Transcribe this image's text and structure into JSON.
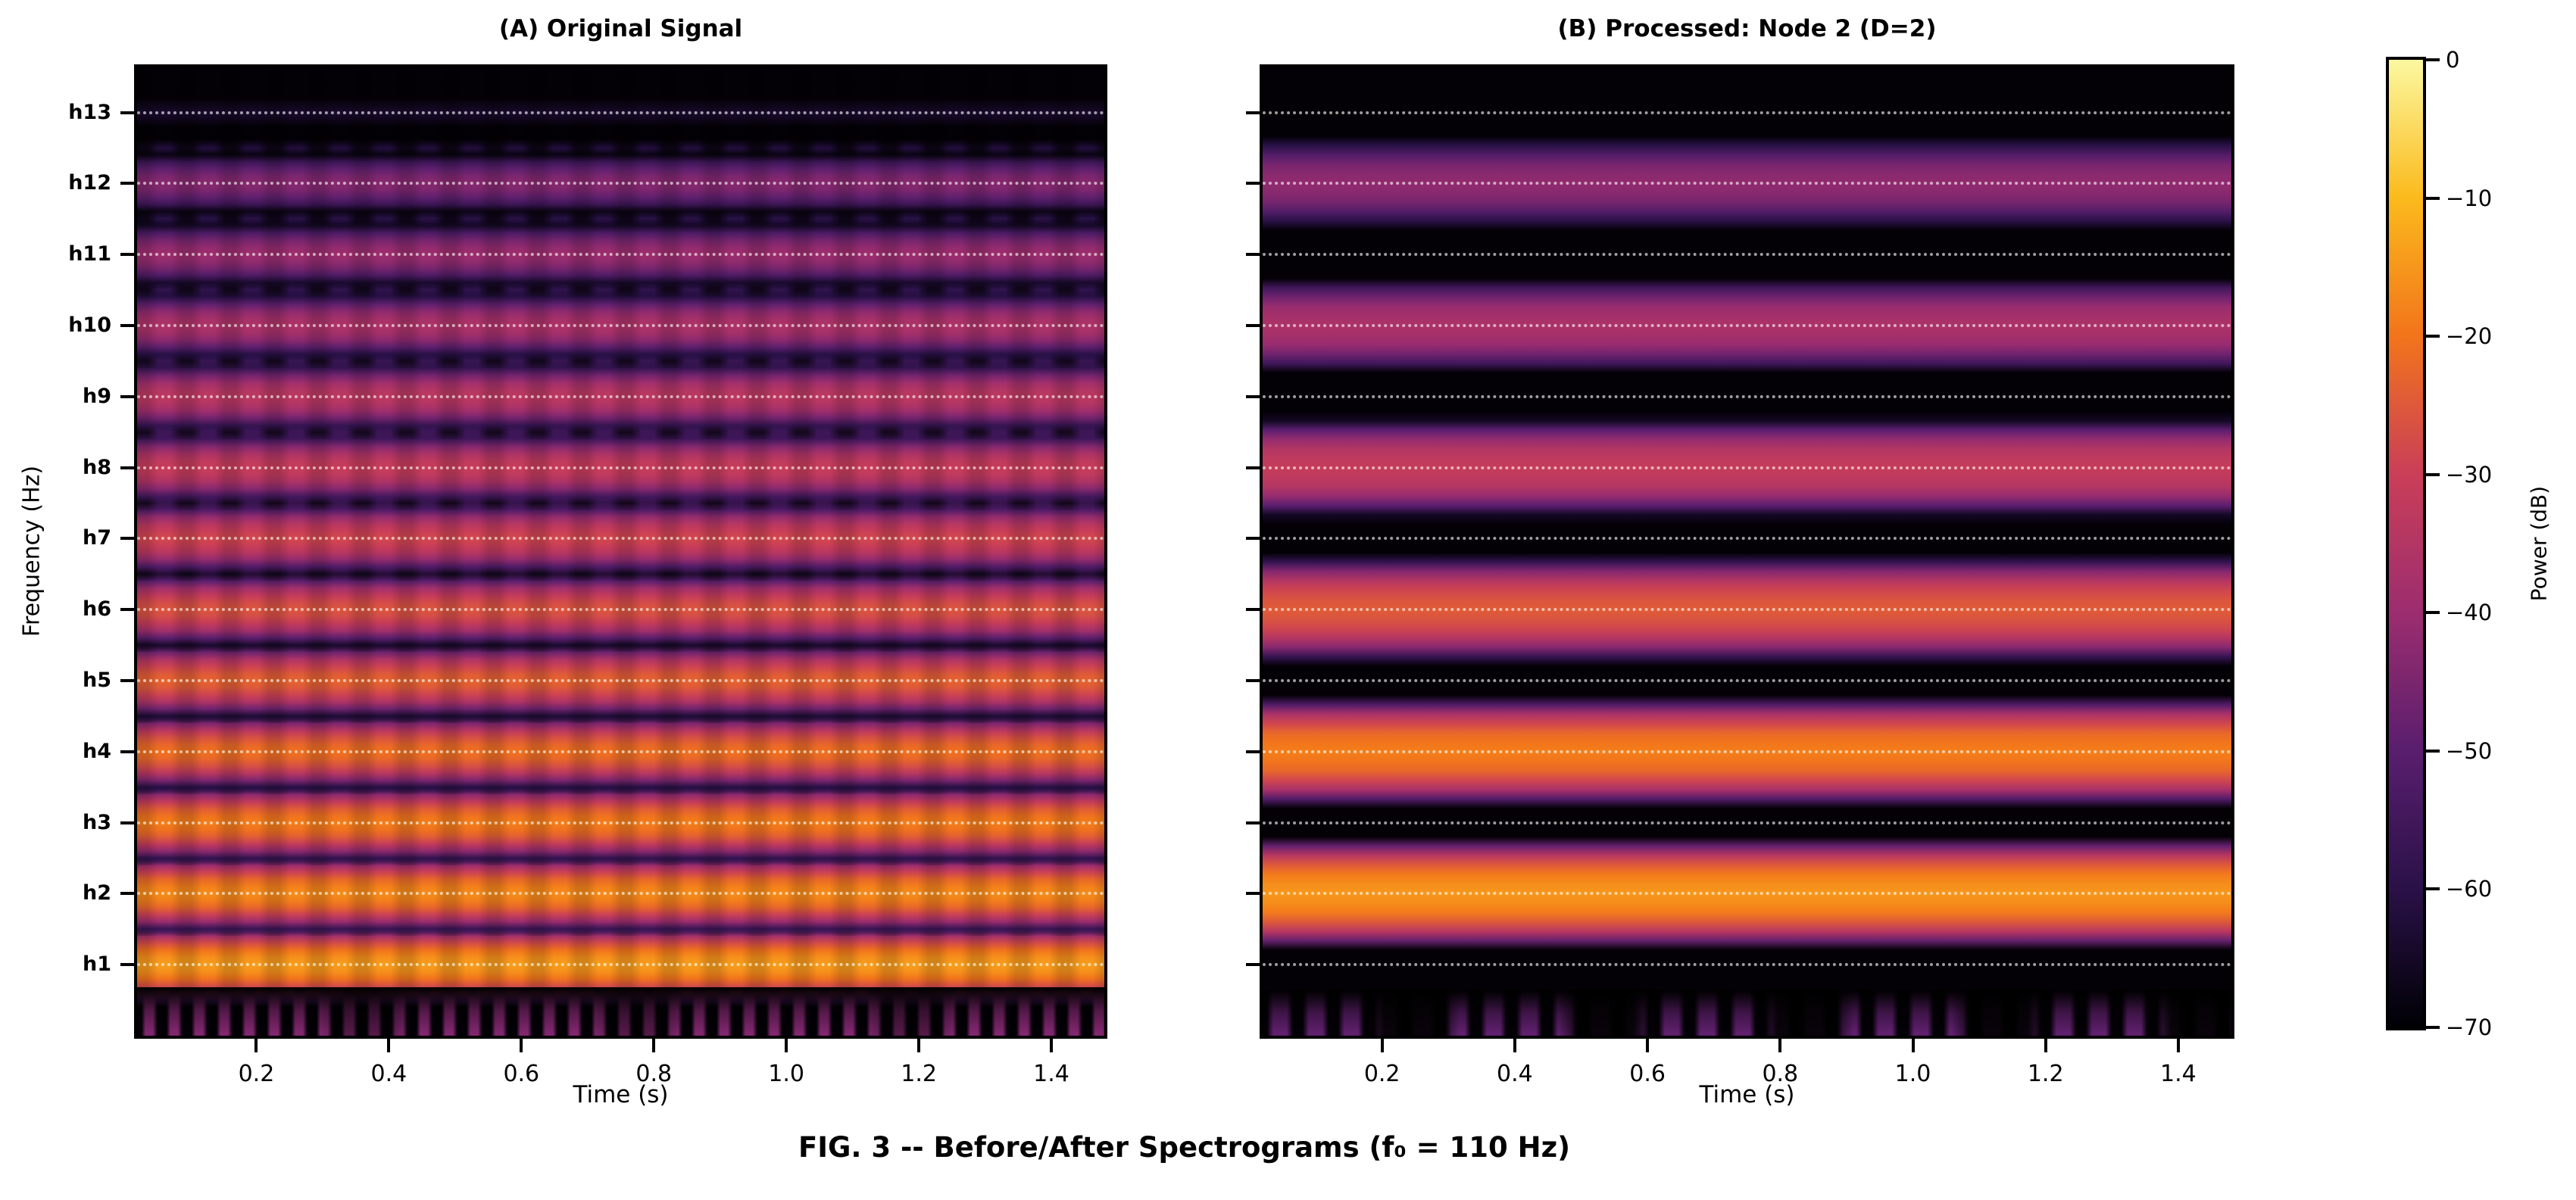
{
  "figure": {
    "caption": "FIG. 3 -- Before/After Spectrograms (f₀ = 110 Hz)",
    "background": "#ffffff"
  },
  "axes": {
    "x_label": "Time (s)",
    "y_label": "Frequency (Hz)",
    "x_range_s": [
      0.02,
      1.48
    ],
    "x_ticks": [
      {
        "value": 0.2,
        "label": "0.2"
      },
      {
        "value": 0.4,
        "label": "0.4"
      },
      {
        "value": 0.6,
        "label": "0.6"
      },
      {
        "value": 0.8,
        "label": "0.8"
      },
      {
        "value": 1.0,
        "label": "1.0"
      },
      {
        "value": 1.2,
        "label": "1.2"
      },
      {
        "value": 1.4,
        "label": "1.4"
      }
    ],
    "y_max_hz": 1500,
    "f0_hz": 110,
    "n_harmonics": 13,
    "y_tick_labels": [
      "h1",
      "h2",
      "h3",
      "h4",
      "h5",
      "h6",
      "h7",
      "h8",
      "h9",
      "h10",
      "h11",
      "h12",
      "h13"
    ]
  },
  "colorbar": {
    "label": "Power (dB)",
    "vmax_db": 0,
    "vmin_db": -70,
    "ticks": [
      {
        "value": 0,
        "label": "0"
      },
      {
        "value": -10,
        "label": "−10"
      },
      {
        "value": -20,
        "label": "−20"
      },
      {
        "value": -30,
        "label": "−30"
      },
      {
        "value": -40,
        "label": "−40"
      },
      {
        "value": -50,
        "label": "−50"
      },
      {
        "value": -60,
        "label": "−60"
      },
      {
        "value": -70,
        "label": "−70"
      }
    ],
    "colormap_stops": [
      {
        "db": -70,
        "color": "#000004"
      },
      {
        "db": -60,
        "color": "#2a1148"
      },
      {
        "db": -50,
        "color": "#591e6e"
      },
      {
        "db": -40,
        "color": "#9c2d6f"
      },
      {
        "db": -30,
        "color": "#ca3e58"
      },
      {
        "db": -20,
        "color": "#f2741b"
      },
      {
        "db": -10,
        "color": "#fbba1c"
      },
      {
        "db": 0,
        "color": "#fbf8a0"
      }
    ]
  },
  "chart_data": [
    {
      "type": "heatmap",
      "panel": "A",
      "title": "(A) Original Signal",
      "xlabel": "Time (s)",
      "ylabel": "Frequency (Hz)",
      "x_range_s": [
        0.02,
        1.48
      ],
      "y_range_hz": [
        0,
        1500
      ],
      "f0_hz": 110,
      "grid": "white dotted line at every harmonic h1–h13",
      "harmonic_bands": [
        {
          "harmonic": 1,
          "freq_hz": 110,
          "peak_db": -14
        },
        {
          "harmonic": 2,
          "freq_hz": 220,
          "peak_db": -16.5
        },
        {
          "harmonic": 3,
          "freq_hz": 330,
          "peak_db": -18.5
        },
        {
          "harmonic": 4,
          "freq_hz": 440,
          "peak_db": -20.5
        },
        {
          "harmonic": 5,
          "freq_hz": 550,
          "peak_db": -23
        },
        {
          "harmonic": 6,
          "freq_hz": 660,
          "peak_db": -25.5
        },
        {
          "harmonic": 7,
          "freq_hz": 770,
          "peak_db": -28
        },
        {
          "harmonic": 8,
          "freq_hz": 880,
          "peak_db": -30.5
        },
        {
          "harmonic": 9,
          "freq_hz": 990,
          "peak_db": -33
        },
        {
          "harmonic": 10,
          "freq_hz": 1100,
          "peak_db": -36
        },
        {
          "harmonic": 11,
          "freq_hz": 1210,
          "peak_db": -39.5
        },
        {
          "harmonic": 12,
          "freq_hz": 1320,
          "peak_db": -43
        },
        {
          "harmonic": 13,
          "freq_hz": 1430,
          "peak_db": -63
        }
      ],
      "interharmonic_bands": [
        {
          "center_harmonic": 1.5,
          "peak_db": -45,
          "modulated": true
        },
        {
          "center_harmonic": 2.5,
          "peak_db": -46.5,
          "modulated": true
        },
        {
          "center_harmonic": 3.5,
          "peak_db": -48,
          "modulated": true
        },
        {
          "center_harmonic": 4.5,
          "peak_db": -49.5,
          "modulated": true
        },
        {
          "center_harmonic": 5.5,
          "peak_db": -51,
          "modulated": true
        },
        {
          "center_harmonic": 6.5,
          "peak_db": -52.5,
          "modulated": true
        },
        {
          "center_harmonic": 7.5,
          "peak_db": -54,
          "modulated": true
        },
        {
          "center_harmonic": 8.5,
          "peak_db": -55.5,
          "modulated": true
        },
        {
          "center_harmonic": 9.5,
          "peak_db": -57,
          "modulated": true
        },
        {
          "center_harmonic": 10.5,
          "peak_db": -58.5,
          "modulated": true
        },
        {
          "center_harmonic": 11.5,
          "peak_db": -60,
          "modulated": true
        },
        {
          "center_harmonic": 12.5,
          "peak_db": -61.5,
          "modulated": true
        }
      ],
      "subfundamental_strip": {
        "present": true,
        "peak_db": -44,
        "pattern": "regular vertical bars"
      }
    },
    {
      "type": "heatmap",
      "panel": "B",
      "title": "(B) Processed: Node 2 (D=2)",
      "xlabel": "Time (s)",
      "ylabel": "",
      "x_range_s": [
        0.02,
        1.48
      ],
      "y_range_hz": [
        0,
        1500
      ],
      "f0_hz": 110,
      "grid": "white dotted line at every harmonic h1–h13",
      "harmonic_bands": [
        {
          "harmonic": 2,
          "freq_hz": 220,
          "peak_db": -15
        },
        {
          "harmonic": 4,
          "freq_hz": 440,
          "peak_db": -18.5
        },
        {
          "harmonic": 6,
          "freq_hz": 660,
          "peak_db": -24.5
        },
        {
          "harmonic": 8,
          "freq_hz": 880,
          "peak_db": -31
        },
        {
          "harmonic": 10,
          "freq_hz": 1100,
          "peak_db": -36.5
        },
        {
          "harmonic": 12,
          "freq_hz": 1320,
          "peak_db": -41.5
        }
      ],
      "interharmonic_bands": [],
      "subfundamental_strip": {
        "present": true,
        "peak_db": -49,
        "pattern": "irregular grouped vertical bars"
      }
    }
  ]
}
